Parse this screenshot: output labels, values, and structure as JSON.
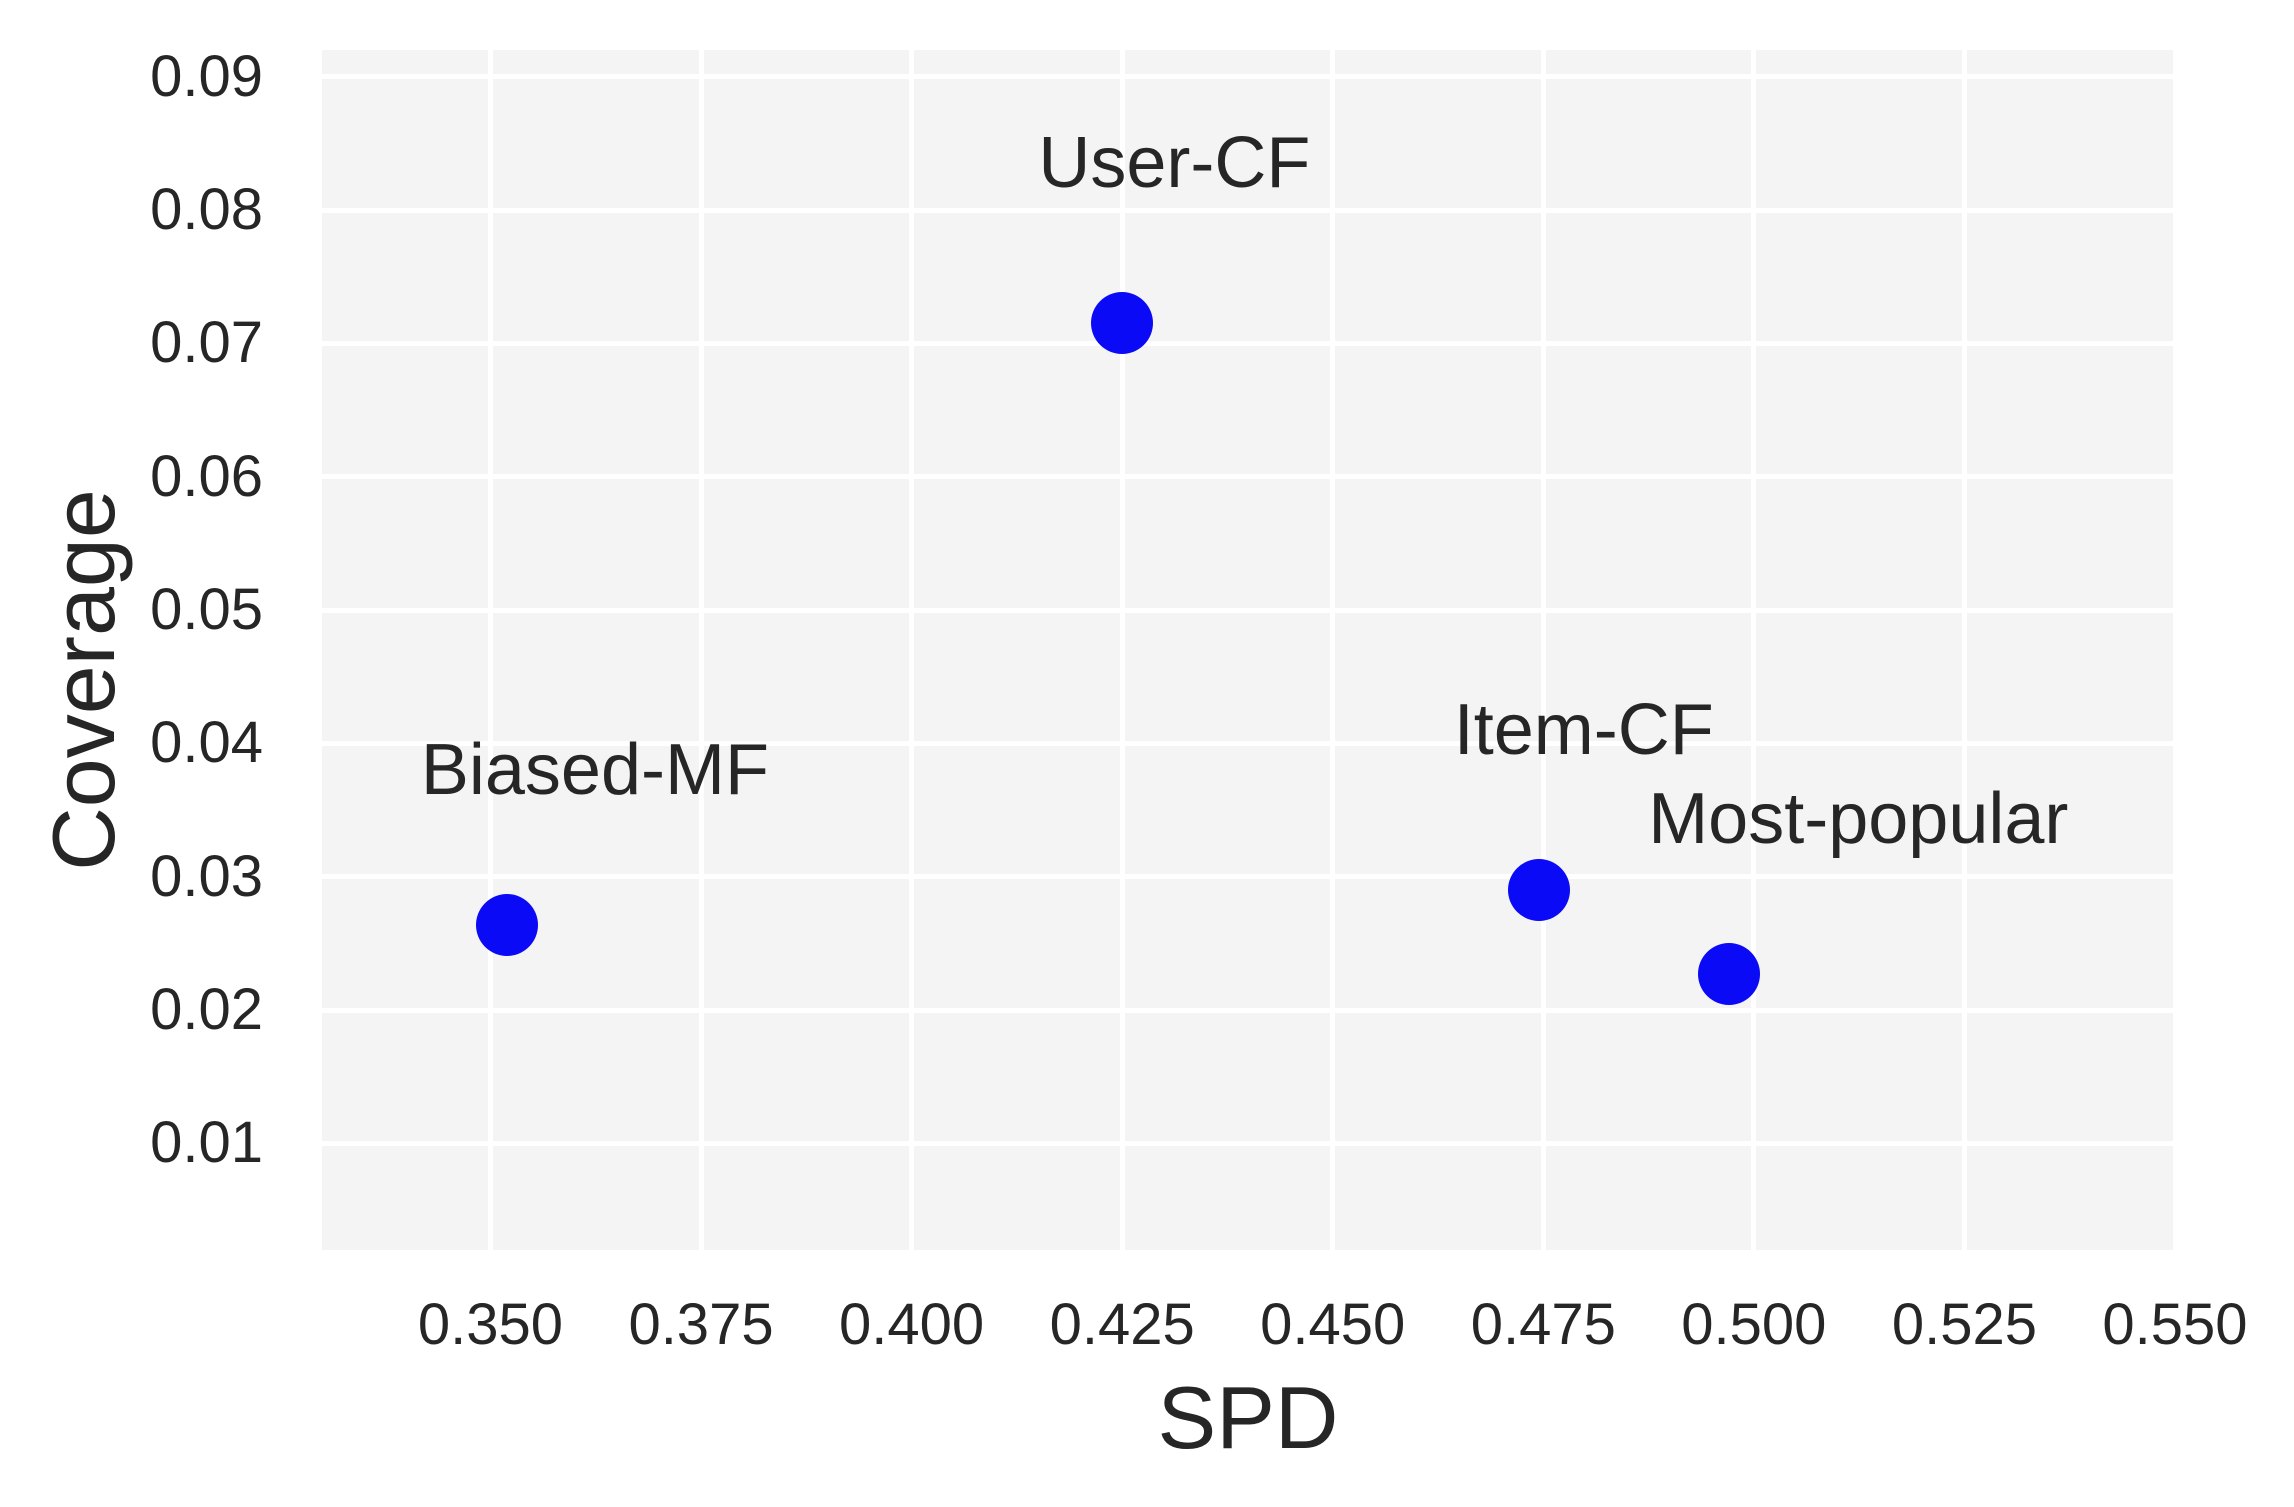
{
  "chart_data": {
    "type": "scatter",
    "title": "",
    "xlabel": "SPD",
    "ylabel": "Coverage",
    "xlim": [
      0.33,
      0.55
    ],
    "ylim": [
      0.002,
      0.092
    ],
    "grid": true,
    "legend_position": "none",
    "x_ticks": [
      {
        "value": 0.35,
        "label": "0.350"
      },
      {
        "value": 0.375,
        "label": "0.375"
      },
      {
        "value": 0.4,
        "label": "0.400"
      },
      {
        "value": 0.425,
        "label": "0.425"
      },
      {
        "value": 0.45,
        "label": "0.450"
      },
      {
        "value": 0.475,
        "label": "0.475"
      },
      {
        "value": 0.5,
        "label": "0.500"
      },
      {
        "value": 0.525,
        "label": "0.525"
      },
      {
        "value": 0.55,
        "label": "0.550"
      }
    ],
    "y_ticks": [
      {
        "value": 0.09,
        "label": "0.09"
      },
      {
        "value": 0.08,
        "label": "0.08"
      },
      {
        "value": 0.07,
        "label": "0.07"
      },
      {
        "value": 0.06,
        "label": "0.06"
      },
      {
        "value": 0.05,
        "label": "0.05"
      },
      {
        "value": 0.04,
        "label": "0.04"
      },
      {
        "value": 0.03,
        "label": "0.03"
      },
      {
        "value": 0.02,
        "label": "0.02"
      },
      {
        "value": 0.01,
        "label": "0.01"
      }
    ],
    "points": [
      {
        "label": "Biased-MF",
        "x": 0.352,
        "y": 0.0264,
        "label_x": 0.3624,
        "label_y": 0.038
      },
      {
        "label": "User-CF",
        "x": 0.425,
        "y": 0.0715,
        "label_x": 0.4312,
        "label_y": 0.0835
      },
      {
        "label": "Item-CF",
        "x": 0.4745,
        "y": 0.029,
        "label_x": 0.4798,
        "label_y": 0.041
      },
      {
        "label": "Most-popular",
        "x": 0.497,
        "y": 0.0227,
        "label_x": 0.5124,
        "label_y": 0.0343
      }
    ],
    "colors": {
      "marker": "#0a0af6",
      "plot_background": "#f4f4f4",
      "gridline": "#ffffff",
      "text": "#262626"
    }
  }
}
